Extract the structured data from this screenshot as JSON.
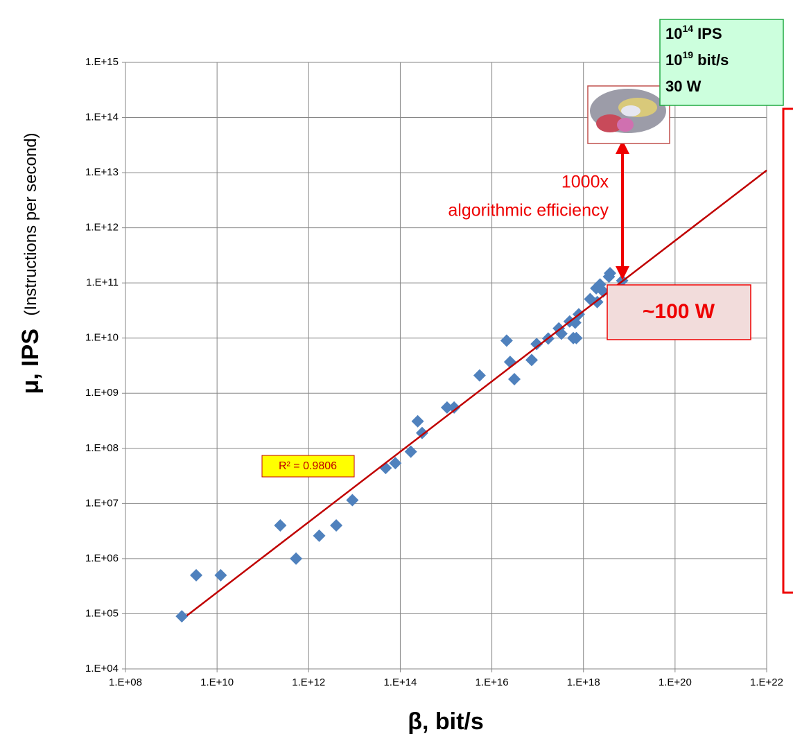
{
  "chart_data": {
    "type": "scatter",
    "xlabel_symbol": "β, bit/s",
    "ylabel": "μ, IPS",
    "ylabel_note": "(Instructions per second)",
    "xscale": "log",
    "yscale": "log",
    "xlim": [
      100000000.0,
      1e+22
    ],
    "ylim": [
      10000.0,
      1000000000000000.0
    ],
    "xticks": [
      {
        "value": 100000000.0,
        "label": "1.E+08"
      },
      {
        "value": 10000000000.0,
        "label": "1.E+10"
      },
      {
        "value": 1000000000000.0,
        "label": "1.E+12"
      },
      {
        "value": 100000000000000.0,
        "label": "1.E+14"
      },
      {
        "value": 1e+16,
        "label": "1.E+16"
      },
      {
        "value": 1e+18,
        "label": "1.E+18"
      },
      {
        "value": 1e+20,
        "label": "1.E+20"
      },
      {
        "value": 1e+22,
        "label": "1.E+22"
      }
    ],
    "yticks": [
      {
        "value": 10000.0,
        "label": "1.E+04"
      },
      {
        "value": 100000.0,
        "label": "1.E+05"
      },
      {
        "value": 1000000.0,
        "label": "1.E+06"
      },
      {
        "value": 10000000.0,
        "label": "1.E+07"
      },
      {
        "value": 100000000.0,
        "label": "1.E+08"
      },
      {
        "value": 1000000000.0,
        "label": "1.E+09"
      },
      {
        "value": 10000000000.0,
        "label": "1.E+10"
      },
      {
        "value": 100000000000.0,
        "label": "1.E+11"
      },
      {
        "value": 1000000000000.0,
        "label": "1.E+12"
      },
      {
        "value": 10000000000000.0,
        "label": "1.E+13"
      },
      {
        "value": 100000000000000.0,
        "label": "1.E+14"
      },
      {
        "value": 1000000000000000.0,
        "label": "1.E+15"
      }
    ],
    "grid": true,
    "color": "#4f81bd",
    "x": [
      1700000000.0,
      3500000000.0,
      12000000000.0,
      240000000000.0,
      530000000000.0,
      1700000000000.0,
      4000000000000.0,
      9000000000000.0,
      48000000000000.0,
      78000000000000.0,
      170000000000000.0,
      240000000000000.0,
      300000000000000.0,
      1050000000000000.0,
      1500000000000000.0,
      5400000000000000.0,
      2.1e+16,
      2.5e+16,
      3.1e+16,
      7.4e+16,
      9.5e+16,
      1.7e+17,
      2.9e+17,
      3.3e+17,
      5e+17,
      6e+17,
      6.6e+17,
      7.9e+17,
      7e+17,
      1.4e+18,
      1.9e+18,
      2e+18,
      2.3e+18,
      2.7e+18,
      3.8e+18,
      3.6e+18,
      7e+18
    ],
    "y": [
      90000.0,
      500000.0,
      500000.0,
      4000000.0,
      1000000.0,
      2600000.0,
      4000000.0,
      11500000.0,
      44000000.0,
      54000000.0,
      87000000.0,
      310000000.0,
      190000000.0,
      550000000.0,
      550000000.0,
      2100000000.0,
      9000000000.0,
      3700000000.0,
      1800000000.0,
      4000000000.0,
      7800000000.0,
      9800000000.0,
      15000000000.0,
      12000000000.0,
      20000000000.0,
      10000000000.0,
      19000000000.0,
      27000000000.0,
      10000000000.0,
      51000000000.0,
      80000000000.0,
      45000000000.0,
      94000000000.0,
      70000000000.0,
      150000000000.0,
      130000000000.0,
      110000000000.0
    ],
    "trendline": {
      "color": "#c00000",
      "x": [
        2200000000.0,
        1e+22
      ],
      "y": [
        93000.0,
        11000000000000.0
      ]
    },
    "r2_label": "R² = 0.9806",
    "gap_label": "1000x",
    "gap_note": "algorithmic efficiency",
    "power_label": "~100 W",
    "brain_box": [
      {
        "base": "10",
        "exp": "14",
        "text": " IPS"
      },
      {
        "base": "10",
        "exp": "19",
        "text": " bit/s"
      },
      {
        "text": "30 W"
      }
    ]
  }
}
